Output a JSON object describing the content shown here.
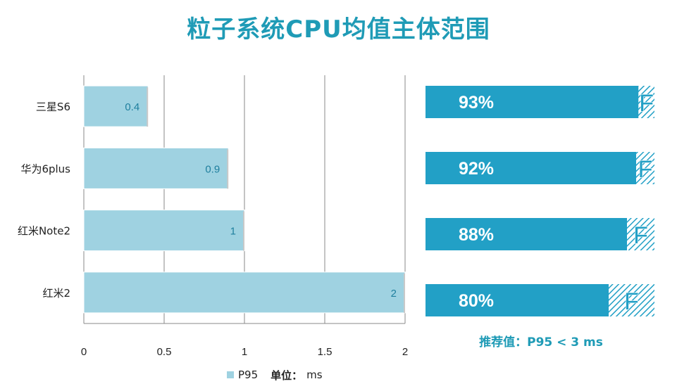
{
  "title": "粒子系统CPU均值主体范围",
  "chart_data": {
    "type": "bar",
    "orientation": "horizontal",
    "categories": [
      "三星S6",
      "华为6plus",
      "红米Note2",
      "红米2"
    ],
    "series": [
      {
        "name": "P95",
        "values": [
          0.4,
          0.9,
          1,
          2
        ]
      }
    ],
    "data_labels": [
      "0.4",
      "0.9",
      "1",
      "2"
    ],
    "xlim": [
      0,
      2
    ],
    "xticks": [
      0,
      0.5,
      1,
      1.5,
      2
    ],
    "xtick_labels": [
      "0",
      "0.5",
      "1",
      "1.5",
      "2"
    ],
    "grid": true,
    "legend_position": "bottom",
    "colors": {
      "bar": "#9fd2e1",
      "bar_edge": "#7fbfd3",
      "label": "#1f7f9e"
    }
  },
  "percent_chart": {
    "type": "bar",
    "categories": [
      "三星S6",
      "华为6plus",
      "红米Note2",
      "红米2"
    ],
    "values": [
      93,
      92,
      88,
      80
    ],
    "labels": [
      "93%",
      "92%",
      "88%",
      "80%"
    ],
    "remainder_letter": "F",
    "colors": {
      "fill": "#22a0c6",
      "hatch": "#22a0c6",
      "text": "#ffffff"
    }
  },
  "legend": {
    "series_label": "P95",
    "unit_label": "单位：",
    "unit_value": "ms"
  },
  "recommendation": "推荐值：P95 < 3 ms"
}
